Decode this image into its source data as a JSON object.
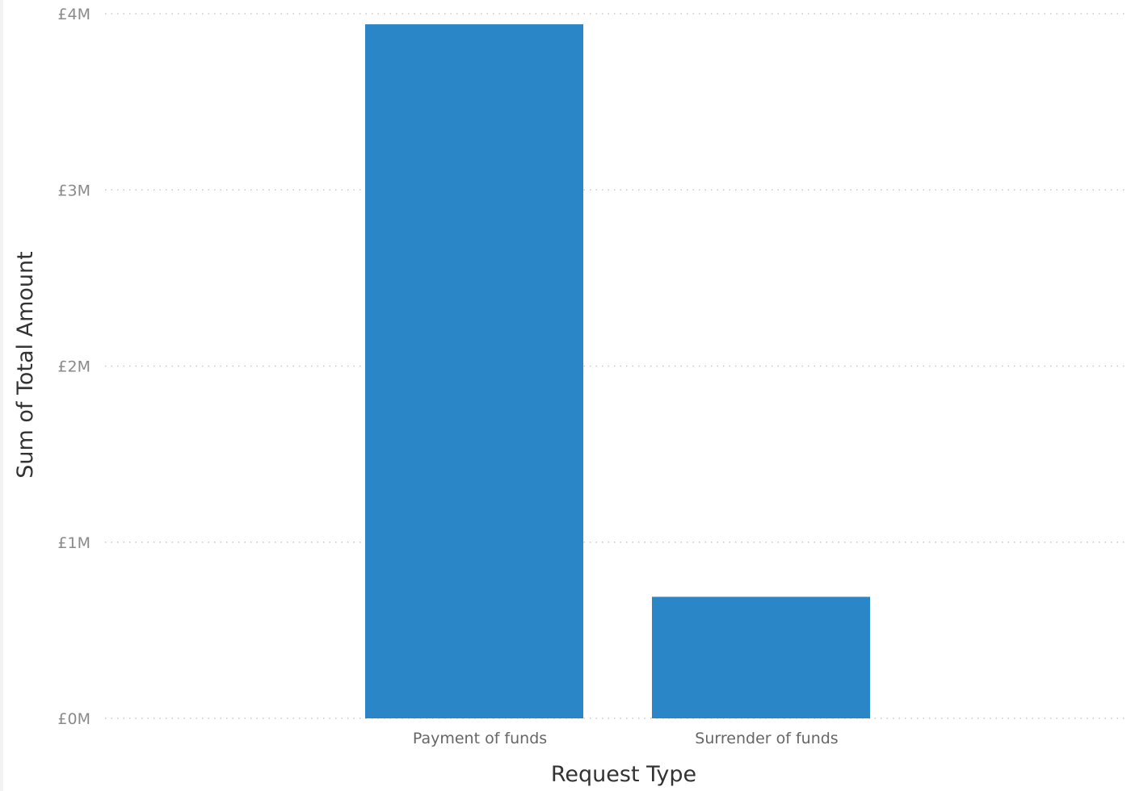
{
  "chart_data": {
    "type": "bar",
    "categories": [
      "Payment of funds",
      "Surrender of funds"
    ],
    "values": [
      3940000,
      690000
    ],
    "xlabel": "Request Type",
    "ylabel": "Sum of Total Amount",
    "ylim": [
      0,
      4000000
    ],
    "yticks": [
      0,
      1000000,
      2000000,
      3000000,
      4000000
    ],
    "ytick_labels": [
      "£0M",
      "£1M",
      "£2M",
      "£3M",
      "£4M"
    ],
    "grid": true,
    "grid_style": "dotted",
    "bar_color": "#2B86C8",
    "grid_color": "#c8c8c8"
  }
}
